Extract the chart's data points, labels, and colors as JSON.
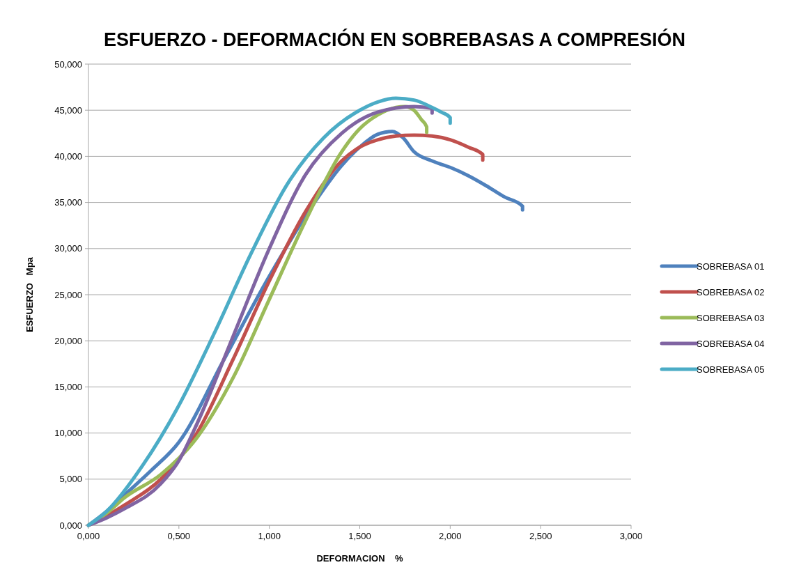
{
  "chart_data": {
    "type": "line",
    "title": "ESFUERZO - DEFORMACIÓN EN SOBREBASAS A COMPRESIÓN",
    "xlabel": "DEFORMACION    %",
    "ylabel": "ESFUERZO   Mpa",
    "xlim": [
      0,
      3
    ],
    "xticks": [
      {
        "value": 0,
        "label": "0,000"
      },
      {
        "value": 0.5,
        "label": "0,500"
      },
      {
        "value": 1,
        "label": "1,000"
      },
      {
        "value": 1.5,
        "label": "1,500"
      },
      {
        "value": 2,
        "label": "2,000"
      },
      {
        "value": 2.5,
        "label": "2,500"
      },
      {
        "value": 3,
        "label": "3,000"
      }
    ],
    "ylim": [
      0,
      50
    ],
    "yticks": [
      {
        "value": 0,
        "label": "0,000"
      },
      {
        "value": 5,
        "label": "5,000"
      },
      {
        "value": 10,
        "label": "10,000"
      },
      {
        "value": 15,
        "label": "15,000"
      },
      {
        "value": 20,
        "label": "20,000"
      },
      {
        "value": 25,
        "label": "25,000"
      },
      {
        "value": 30,
        "label": "30,000"
      },
      {
        "value": 35,
        "label": "35,000"
      },
      {
        "value": 40,
        "label": "40,000"
      },
      {
        "value": 45,
        "label": "45,000"
      },
      {
        "value": 50,
        "label": "50,000"
      }
    ],
    "grid": "y",
    "legend": "right",
    "marker": "none",
    "line_style": "solid",
    "series": [
      {
        "name": "SOBREBASA 01",
        "color": "#4f81bd",
        "x": [
          0,
          0.1,
          0.2,
          0.35,
          0.5,
          0.75,
          1.0,
          1.25,
          1.4,
          1.5,
          1.6,
          1.68,
          1.74,
          1.8,
          1.9,
          2.0,
          2.1,
          2.2,
          2.3,
          2.4,
          2.4
        ],
        "values": [
          0,
          1.5,
          3.3,
          6,
          9,
          18,
          27,
          35,
          39,
          41,
          42.4,
          42.7,
          42,
          40.5,
          39.5,
          38.8,
          37.9,
          36.8,
          35.6,
          34.6,
          34.2
        ]
      },
      {
        "name": "SOBREBASA 02",
        "color": "#c0504d",
        "x": [
          0,
          0.1,
          0.2,
          0.4,
          0.6,
          0.8,
          1.0,
          1.2,
          1.4,
          1.5,
          1.6,
          1.7,
          1.8,
          1.9,
          2.0,
          2.1,
          2.18,
          2.18
        ],
        "values": [
          0,
          1,
          2.2,
          5,
          10,
          18,
          26.5,
          34,
          39.5,
          41,
          41.8,
          42.2,
          42.3,
          42.2,
          41.8,
          41,
          40.2,
          39.6
        ]
      },
      {
        "name": "SOBREBASA 03",
        "color": "#9bbb59",
        "x": [
          0,
          0.1,
          0.2,
          0.4,
          0.6,
          0.8,
          1.0,
          1.2,
          1.4,
          1.5,
          1.6,
          1.7,
          1.75,
          1.8,
          1.84,
          1.87,
          1.87
        ],
        "values": [
          0,
          1.3,
          3,
          5.5,
          9.5,
          16,
          24.5,
          33,
          40.5,
          43,
          44.5,
          45.3,
          45.4,
          45,
          44,
          43.2,
          42.6
        ]
      },
      {
        "name": "SOBREBASA 04",
        "color": "#8064a2",
        "x": [
          0,
          0.1,
          0.2,
          0.4,
          0.5,
          0.6,
          0.8,
          1.0,
          1.2,
          1.4,
          1.6,
          1.8,
          1.9,
          1.9
        ],
        "values": [
          0,
          0.8,
          1.8,
          4.5,
          7,
          11,
          20.5,
          30,
          38,
          42.5,
          44.8,
          45.4,
          45.2,
          44.7
        ]
      },
      {
        "name": "SOBREBASA 05",
        "color": "#4bacc6",
        "x": [
          0,
          0.1,
          0.3,
          0.5,
          0.7,
          0.9,
          1.1,
          1.3,
          1.5,
          1.6,
          1.7,
          1.8,
          1.9,
          1.95,
          2.0,
          2.0
        ],
        "values": [
          0,
          1.5,
          6.5,
          13,
          21,
          29.5,
          37,
          42,
          45,
          45.9,
          46.3,
          46.1,
          45.3,
          44.8,
          44.2,
          43.6
        ]
      }
    ]
  }
}
